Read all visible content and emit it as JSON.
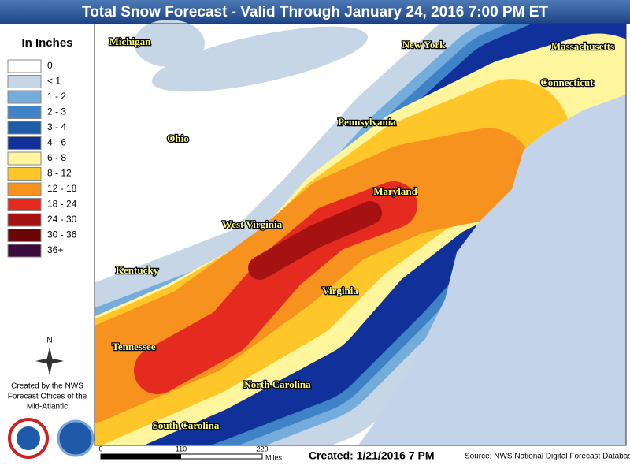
{
  "title": "Total Snow Forecast - Valid Through January 24, 2016 7:00 PM ET",
  "legend": {
    "title": "In Inches",
    "items": [
      {
        "label": "0",
        "color": "#ffffff"
      },
      {
        "label": "< 1",
        "color": "#c6d6e6"
      },
      {
        "label": "1 - 2",
        "color": "#74acdc"
      },
      {
        "label": "2 - 3",
        "color": "#3f83c6"
      },
      {
        "label": "3 - 4",
        "color": "#1f5ca8"
      },
      {
        "label": "4 - 6",
        "color": "#10309a"
      },
      {
        "label": "6 - 8",
        "color": "#fff59c"
      },
      {
        "label": "8 - 12",
        "color": "#ffc629"
      },
      {
        "label": "12 - 18",
        "color": "#f7921f"
      },
      {
        "label": "18 - 24",
        "color": "#e52b1f"
      },
      {
        "label": "24 - 30",
        "color": "#a61111"
      },
      {
        "label": "30 - 36",
        "color": "#6a0606"
      },
      {
        "label": "36+",
        "color": "#3b0b3b"
      }
    ]
  },
  "states": [
    "Michigan",
    "New York",
    "Massachusetts",
    "Connecticut",
    "Pennsylvania",
    "Ohio",
    "Maryland",
    "West Virginia",
    "Kentucky",
    "Virginia",
    "Tennessee",
    "North Carolina",
    "South Carolina"
  ],
  "compass": "N",
  "credit": [
    "Created by the NWS",
    "Forecast Offices of the",
    "Mid-Atlantic"
  ],
  "scale": {
    "labels": [
      "0",
      "110",
      "220"
    ],
    "unit": "Miles"
  },
  "created": "Created: 1/21/2016 7 PM",
  "source": "Source: NWS National Digital Forecast Database"
}
